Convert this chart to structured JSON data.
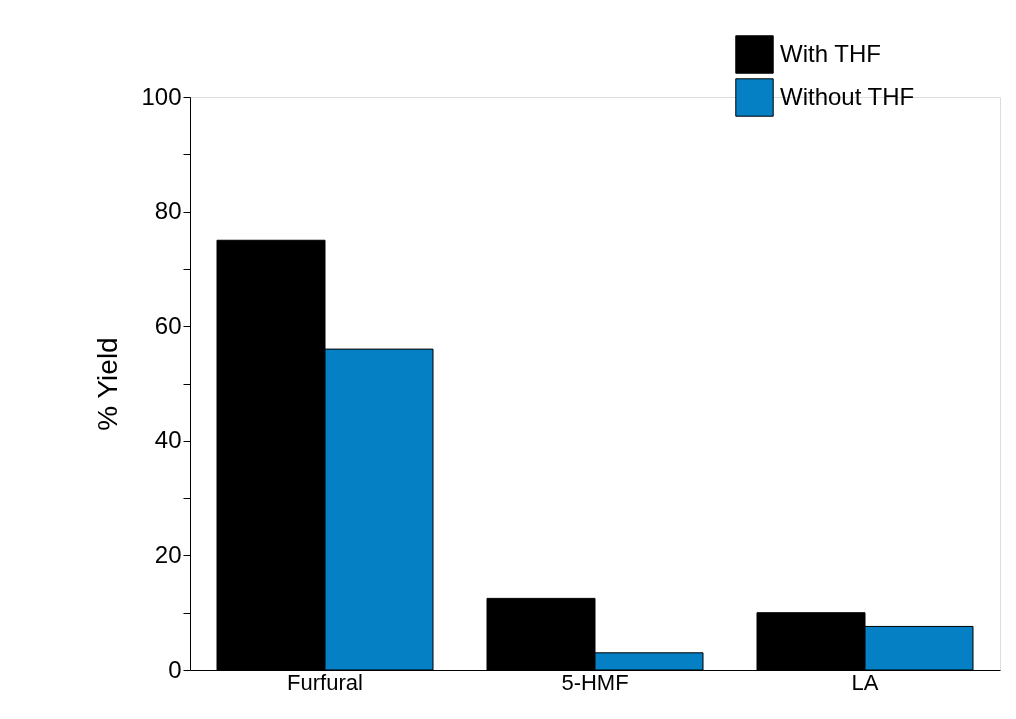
{
  "chart_data": {
    "type": "bar",
    "ylabel": "% Yield",
    "categories": [
      "Furfural",
      "5-HMF",
      "LA"
    ],
    "series": [
      {
        "name": "With THF",
        "color": "#000000",
        "values": [
          75,
          12.5,
          10
        ]
      },
      {
        "name": "Without THF",
        "color": "#0580c4",
        "values": [
          56,
          3,
          7.6
        ]
      }
    ],
    "ylim": [
      0,
      100
    ],
    "yticks": [
      0,
      {
        "value": 10,
        "label": null
      },
      20,
      {
        "value": 30,
        "label": null
      },
      40,
      {
        "value": 50,
        "label": null
      },
      60,
      {
        "value": 70,
        "label": null
      },
      80,
      {
        "value": 90,
        "label": null
      },
      100
    ],
    "legend": "top right",
    "grid": false
  }
}
